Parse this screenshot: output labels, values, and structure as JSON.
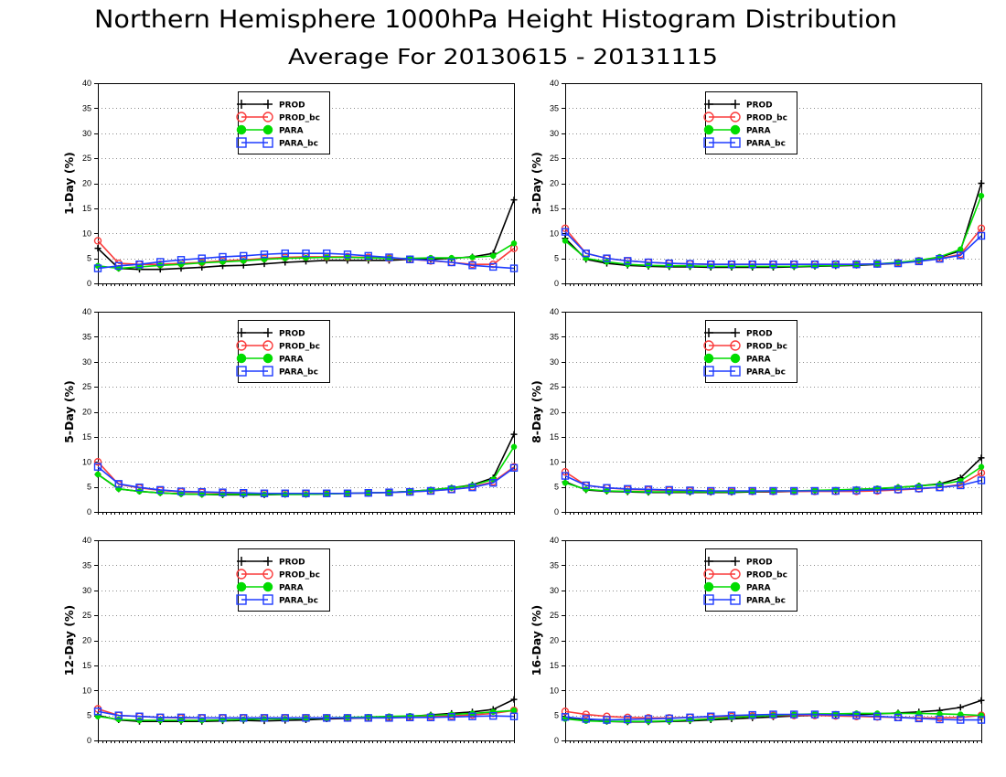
{
  "title": "Northern Hemisphere 1000hPa Height Histogram Distribution",
  "subtitle": "Average For 20130615 - 20131115",
  "series_styles": {
    "PROD": {
      "color": "#000000",
      "marker": "plus"
    },
    "PROD_bc": {
      "color": "#fa3c3c",
      "marker": "open-circle"
    },
    "PARA": {
      "color": "#00dc00",
      "marker": "filled-circle"
    },
    "PARA_bc": {
      "color": "#1e3cff",
      "marker": "open-square"
    }
  },
  "chart_data": [
    {
      "type": "line",
      "ylabel": "1-Day (%)",
      "ylim": [
        0,
        40
      ],
      "yticks": [
        0,
        5,
        10,
        15,
        20,
        25,
        30,
        35,
        40
      ],
      "grid": true,
      "legend_placement": "top-center",
      "series": [
        {
          "name": "PROD",
          "values": [
            7.0,
            3.0,
            2.8,
            2.8,
            3.0,
            3.2,
            3.5,
            3.6,
            3.9,
            4.2,
            4.4,
            4.6,
            4.6,
            4.6,
            4.6,
            4.8,
            4.8,
            5.0,
            5.3,
            6.0,
            16.7
          ]
        },
        {
          "name": "PROD_bc",
          "values": [
            8.5,
            4.0,
            3.8,
            3.8,
            4.0,
            4.2,
            4.5,
            4.7,
            5.0,
            5.2,
            5.3,
            5.3,
            5.3,
            5.2,
            5.0,
            4.8,
            4.5,
            4.2,
            3.8,
            3.8,
            7.0
          ]
        },
        {
          "name": "PARA",
          "values": [
            3.5,
            3.0,
            3.3,
            3.6,
            3.8,
            4.1,
            4.3,
            4.5,
            4.8,
            5.0,
            5.1,
            5.2,
            5.2,
            5.1,
            5.0,
            5.0,
            5.1,
            5.1,
            5.2,
            5.5,
            8.0
          ]
        },
        {
          "name": "PARA_bc",
          "values": [
            3.0,
            3.5,
            3.8,
            4.3,
            4.7,
            5.0,
            5.3,
            5.5,
            5.8,
            6.0,
            6.0,
            6.0,
            5.8,
            5.5,
            5.2,
            4.8,
            4.6,
            4.2,
            3.6,
            3.3,
            3.0
          ]
        }
      ]
    },
    {
      "type": "line",
      "ylabel": "3-Day (%)",
      "ylim": [
        0,
        40
      ],
      "yticks": [
        0,
        5,
        10,
        15,
        20,
        25,
        30,
        35,
        40
      ],
      "grid": true,
      "legend_placement": "top-center",
      "series": [
        {
          "name": "PROD",
          "values": [
            9.0,
            4.8,
            4.0,
            3.6,
            3.4,
            3.3,
            3.3,
            3.2,
            3.2,
            3.2,
            3.2,
            3.3,
            3.4,
            3.5,
            3.6,
            3.8,
            4.0,
            4.5,
            5.2,
            6.5,
            20.0
          ]
        },
        {
          "name": "PROD_bc",
          "values": [
            11.0,
            6.0,
            5.0,
            4.5,
            4.2,
            4.0,
            3.9,
            3.8,
            3.8,
            3.8,
            3.8,
            3.8,
            3.8,
            3.8,
            3.8,
            3.9,
            4.1,
            4.5,
            5.0,
            5.8,
            11.0
          ]
        },
        {
          "name": "PARA",
          "values": [
            8.5,
            5.0,
            4.3,
            3.8,
            3.6,
            3.5,
            3.5,
            3.4,
            3.4,
            3.4,
            3.4,
            3.4,
            3.5,
            3.6,
            3.7,
            3.9,
            4.2,
            4.6,
            5.3,
            6.8,
            17.5
          ]
        },
        {
          "name": "PARA_bc",
          "values": [
            10.3,
            6.0,
            5.0,
            4.5,
            4.2,
            4.0,
            3.9,
            3.8,
            3.8,
            3.8,
            3.8,
            3.8,
            3.8,
            3.8,
            3.8,
            3.9,
            4.0,
            4.4,
            4.9,
            5.6,
            9.5
          ]
        }
      ]
    },
    {
      "type": "line",
      "ylabel": "5-Day (%)",
      "ylim": [
        0,
        40
      ],
      "yticks": [
        0,
        5,
        10,
        15,
        20,
        25,
        30,
        35,
        40
      ],
      "grid": true,
      "legend_placement": "top-center",
      "series": [
        {
          "name": "PROD",
          "values": [
            7.5,
            4.6,
            4.1,
            3.8,
            3.6,
            3.5,
            3.4,
            3.4,
            3.4,
            3.5,
            3.5,
            3.6,
            3.7,
            3.8,
            3.9,
            4.1,
            4.4,
            4.8,
            5.4,
            6.8,
            15.5
          ]
        },
        {
          "name": "PROD_bc",
          "values": [
            10.0,
            5.5,
            4.8,
            4.3,
            4.0,
            3.9,
            3.8,
            3.7,
            3.7,
            3.7,
            3.7,
            3.7,
            3.7,
            3.8,
            3.9,
            4.0,
            4.2,
            4.5,
            5.0,
            6.0,
            9.0
          ]
        },
        {
          "name": "PARA",
          "values": [
            7.5,
            4.6,
            4.1,
            3.8,
            3.6,
            3.5,
            3.5,
            3.5,
            3.5,
            3.5,
            3.5,
            3.6,
            3.7,
            3.8,
            3.9,
            4.1,
            4.4,
            4.8,
            5.3,
            6.5,
            13.0
          ]
        },
        {
          "name": "PARA_bc",
          "values": [
            9.0,
            5.6,
            4.9,
            4.4,
            4.1,
            4.0,
            3.9,
            3.8,
            3.7,
            3.7,
            3.7,
            3.7,
            3.7,
            3.8,
            3.9,
            4.0,
            4.2,
            4.5,
            4.9,
            5.8,
            8.8
          ]
        }
      ]
    },
    {
      "type": "line",
      "ylabel": "8-Day (%)",
      "ylim": [
        0,
        40
      ],
      "yticks": [
        0,
        5,
        10,
        15,
        20,
        25,
        30,
        35,
        40
      ],
      "grid": true,
      "legend_placement": "top-center",
      "series": [
        {
          "name": "PROD",
          "values": [
            6.0,
            4.4,
            4.1,
            4.0,
            3.9,
            3.9,
            3.9,
            3.9,
            3.9,
            4.0,
            4.0,
            4.1,
            4.2,
            4.3,
            4.5,
            4.6,
            4.9,
            5.2,
            5.6,
            6.8,
            10.8
          ]
        },
        {
          "name": "PROD_bc",
          "values": [
            8.0,
            5.3,
            4.8,
            4.5,
            4.4,
            4.3,
            4.2,
            4.1,
            4.1,
            4.1,
            4.1,
            4.1,
            4.1,
            4.1,
            4.1,
            4.2,
            4.4,
            4.6,
            4.9,
            5.5,
            7.8
          ]
        },
        {
          "name": "PARA",
          "values": [
            5.8,
            4.5,
            4.2,
            4.1,
            4.0,
            4.0,
            4.0,
            4.0,
            4.0,
            4.1,
            4.2,
            4.2,
            4.3,
            4.4,
            4.5,
            4.7,
            4.9,
            5.2,
            5.5,
            6.2,
            9.0
          ]
        },
        {
          "name": "PARA_bc",
          "values": [
            7.2,
            5.3,
            4.8,
            4.6,
            4.5,
            4.4,
            4.3,
            4.2,
            4.2,
            4.2,
            4.2,
            4.2,
            4.2,
            4.2,
            4.3,
            4.4,
            4.5,
            4.7,
            4.9,
            5.3,
            6.3
          ]
        }
      ]
    },
    {
      "type": "line",
      "ylabel": "12-Day (%)",
      "ylim": [
        0,
        40
      ],
      "yticks": [
        0,
        5,
        10,
        15,
        20,
        25,
        30,
        35,
        40
      ],
      "grid": true,
      "legend_placement": "top-center",
      "series": [
        {
          "name": "PROD",
          "values": [
            5.0,
            4.1,
            3.8,
            3.8,
            3.8,
            3.8,
            3.9,
            4.0,
            3.9,
            4.0,
            4.1,
            4.3,
            4.4,
            4.5,
            4.6,
            4.8,
            5.1,
            5.4,
            5.7,
            6.2,
            8.2
          ]
        },
        {
          "name": "PROD_bc",
          "values": [
            6.3,
            5.0,
            4.8,
            4.6,
            4.5,
            4.5,
            4.5,
            4.5,
            4.5,
            4.5,
            4.5,
            4.5,
            4.5,
            4.5,
            4.6,
            4.7,
            4.8,
            4.9,
            5.1,
            5.4,
            6.0
          ]
        },
        {
          "name": "PARA",
          "values": [
            4.8,
            4.2,
            4.0,
            4.0,
            4.0,
            4.0,
            4.1,
            4.2,
            4.3,
            4.3,
            4.4,
            4.5,
            4.6,
            4.7,
            4.8,
            4.9,
            5.0,
            5.2,
            5.4,
            5.7,
            6.0
          ]
        },
        {
          "name": "PARA_bc",
          "values": [
            5.8,
            5.0,
            4.8,
            4.6,
            4.6,
            4.5,
            4.5,
            4.5,
            4.5,
            4.5,
            4.5,
            4.5,
            4.5,
            4.5,
            4.5,
            4.6,
            4.6,
            4.7,
            4.8,
            4.9,
            4.8
          ]
        }
      ]
    },
    {
      "type": "line",
      "ylabel": "16-Day (%)",
      "ylim": [
        0,
        40
      ],
      "yticks": [
        0,
        5,
        10,
        15,
        20,
        25,
        30,
        35,
        40
      ],
      "grid": true,
      "legend_placement": "top-center",
      "series": [
        {
          "name": "PROD",
          "values": [
            4.5,
            4.0,
            3.8,
            3.7,
            3.7,
            3.8,
            3.9,
            4.1,
            4.3,
            4.5,
            4.7,
            4.9,
            5.0,
            5.1,
            5.2,
            5.3,
            5.5,
            5.7,
            6.0,
            6.6,
            8.0
          ]
        },
        {
          "name": "PROD_bc",
          "values": [
            5.8,
            5.2,
            4.8,
            4.6,
            4.5,
            4.5,
            4.6,
            4.7,
            4.8,
            4.9,
            5.0,
            5.0,
            5.0,
            4.9,
            4.8,
            4.7,
            4.6,
            4.5,
            4.5,
            4.6,
            5.0
          ]
        },
        {
          "name": "PARA",
          "values": [
            4.3,
            3.9,
            3.8,
            3.8,
            3.8,
            3.9,
            4.1,
            4.3,
            4.6,
            4.8,
            5.0,
            5.2,
            5.3,
            5.3,
            5.4,
            5.4,
            5.4,
            5.4,
            5.3,
            5.2,
            5.0
          ]
        },
        {
          "name": "PARA_bc",
          "values": [
            4.7,
            4.3,
            4.1,
            4.2,
            4.3,
            4.4,
            4.6,
            4.8,
            5.0,
            5.1,
            5.2,
            5.2,
            5.2,
            5.1,
            5.0,
            4.8,
            4.6,
            4.4,
            4.2,
            4.1,
            4.1
          ]
        }
      ]
    }
  ]
}
